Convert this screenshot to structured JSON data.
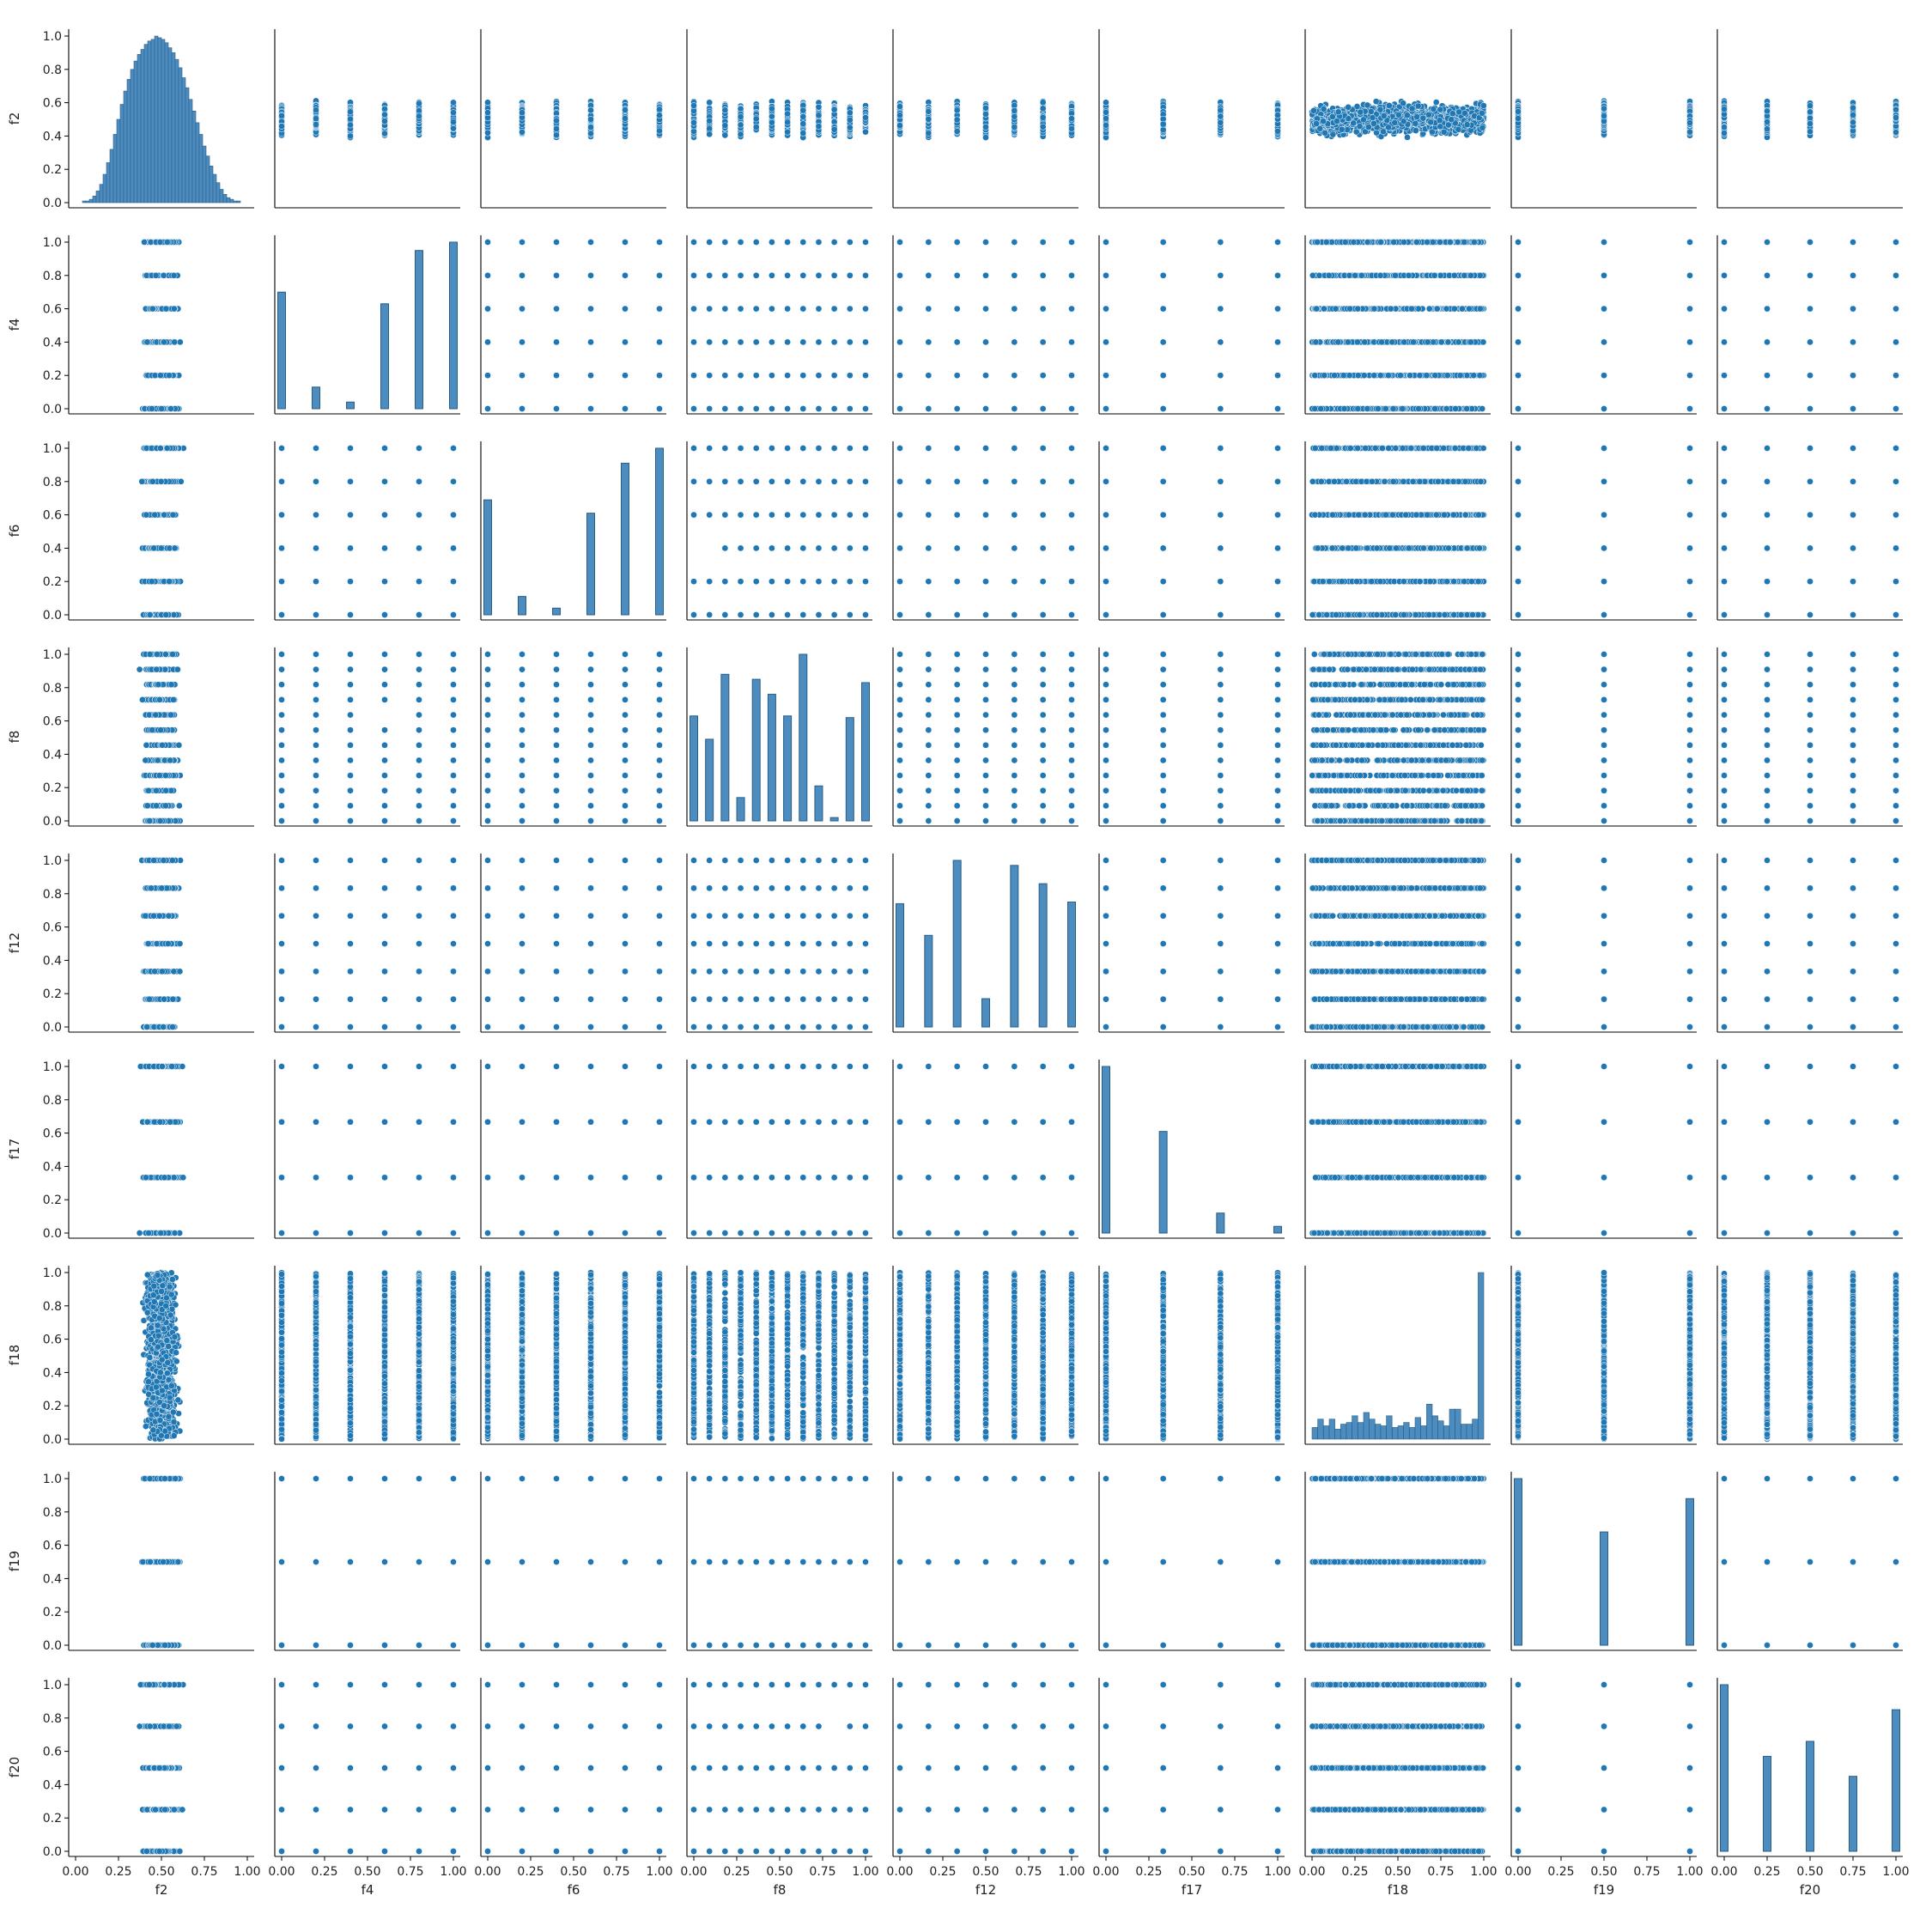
{
  "chart_data": {
    "type": "scatter",
    "kind": "pairplot",
    "variables": [
      "f2",
      "f4",
      "f6",
      "f8",
      "f12",
      "f17",
      "f18",
      "f19",
      "f20"
    ],
    "diagonal_type": "histogram",
    "off_diagonal_type": "scatter",
    "axis_range": [
      0,
      1
    ],
    "x_ticks": [
      "0.00",
      "0.25",
      "0.50",
      "0.75",
      "1.00"
    ],
    "y_ticks": [
      "0.0",
      "0.2",
      "0.4",
      "0.6",
      "0.8",
      "1.0"
    ],
    "grid": false,
    "legend": "none",
    "colors": {
      "marker": "#1f77b4",
      "marker_edge": "#ffffff",
      "hist_fill": "#4c8cbf",
      "hist_edge": "#2a5d85"
    },
    "feature_values": {
      "f4": [
        0,
        0.2,
        0.4,
        0.6,
        0.8,
        1.0
      ],
      "f6": [
        0,
        0.2,
        0.4,
        0.6,
        0.8,
        1.0
      ],
      "f8": [
        0,
        0.0909,
        0.1818,
        0.2727,
        0.3636,
        0.4545,
        0.5455,
        0.6364,
        0.7273,
        0.8182,
        0.9091,
        1.0
      ],
      "f12": [
        0,
        0.1667,
        0.3333,
        0.5,
        0.6667,
        0.8333,
        1.0
      ],
      "f17": [
        0,
        0.3333,
        0.6667,
        1.0
      ],
      "f19": [
        0,
        0.5,
        1.0
      ],
      "f20": [
        0,
        0.25,
        0.5,
        0.75,
        1.0
      ]
    },
    "histograms": {
      "f4": {
        "x": [
          0,
          0.2,
          0.4,
          0.6,
          0.8,
          1.0
        ],
        "rel_freq": [
          0.7,
          0.13,
          0.04,
          0.63,
          0.95,
          1.0
        ]
      },
      "f6": {
        "x": [
          0,
          0.2,
          0.4,
          0.6,
          0.8,
          1.0
        ],
        "rel_freq": [
          0.69,
          0.11,
          0.04,
          0.61,
          0.91,
          1.0
        ]
      },
      "f8": {
        "x": [
          0,
          0.0909,
          0.1818,
          0.2727,
          0.3636,
          0.4545,
          0.5455,
          0.6364,
          0.7273,
          0.8182,
          0.9091,
          1.0
        ],
        "rel_freq": [
          0.63,
          0.49,
          0.88,
          0.14,
          0.85,
          0.76,
          0.63,
          1.0,
          0.21,
          0.02,
          0.62,
          0.83
        ]
      },
      "f12": {
        "x": [
          0,
          0.1667,
          0.3333,
          0.5,
          0.6667,
          0.8333,
          1.0
        ],
        "rel_freq": [
          0.74,
          0.55,
          1.0,
          0.17,
          0.97,
          0.86,
          0.75
        ]
      },
      "f17": {
        "x": [
          0,
          0.3333,
          0.6667,
          1.0
        ],
        "rel_freq": [
          1.0,
          0.61,
          0.12,
          0.04
        ]
      },
      "f19": {
        "x": [
          0,
          0.5,
          1.0
        ],
        "rel_freq": [
          1.0,
          0.68,
          0.88
        ]
      },
      "f20": {
        "x": [
          0,
          0.25,
          0.5,
          0.75,
          1.0
        ],
        "rel_freq": [
          1.0,
          0.57,
          0.66,
          0.45,
          0.85
        ]
      },
      "f2": {
        "bins": [
          0.0,
          0.02,
          0.04,
          0.06,
          0.08,
          0.1,
          0.12,
          0.14,
          0.16,
          0.18,
          0.2,
          0.22,
          0.24,
          0.26,
          0.28,
          0.3,
          0.32,
          0.34,
          0.36,
          0.38,
          0.4,
          0.42,
          0.44,
          0.46,
          0.48,
          0.5,
          0.52,
          0.54,
          0.56,
          0.58,
          0.6,
          0.62,
          0.64,
          0.66,
          0.68,
          0.7,
          0.72,
          0.74,
          0.76,
          0.78,
          0.8,
          0.82,
          0.84,
          0.86,
          0.88,
          0.9,
          0.92,
          0.94,
          0.96,
          0.98
        ],
        "rel_freq": [
          0.0,
          0.0,
          0.01,
          0.01,
          0.02,
          0.04,
          0.07,
          0.11,
          0.17,
          0.24,
          0.32,
          0.41,
          0.5,
          0.59,
          0.67,
          0.74,
          0.8,
          0.85,
          0.89,
          0.92,
          0.95,
          0.97,
          0.98,
          1.0,
          0.99,
          0.98,
          0.96,
          0.93,
          0.9,
          0.86,
          0.81,
          0.75,
          0.69,
          0.62,
          0.55,
          0.48,
          0.41,
          0.34,
          0.28,
          0.22,
          0.17,
          0.12,
          0.08,
          0.05,
          0.03,
          0.02,
          0.01,
          0.01,
          0.0,
          0.0
        ]
      },
      "f18": {
        "bins": [
          0.0,
          0.033,
          0.067,
          0.1,
          0.133,
          0.167,
          0.2,
          0.233,
          0.267,
          0.3,
          0.333,
          0.367,
          0.4,
          0.433,
          0.467,
          0.5,
          0.533,
          0.567,
          0.6,
          0.633,
          0.667,
          0.7,
          0.733,
          0.767,
          0.8,
          0.833,
          0.867,
          0.9,
          0.933,
          0.967
        ],
        "rel_freq": [
          0.07,
          0.12,
          0.08,
          0.12,
          0.06,
          0.09,
          0.1,
          0.14,
          0.1,
          0.16,
          0.12,
          0.09,
          0.08,
          0.14,
          0.07,
          0.08,
          0.1,
          0.07,
          0.13,
          0.08,
          0.21,
          0.14,
          0.11,
          0.08,
          0.18,
          0.18,
          0.09,
          0.09,
          0.12,
          1.0
        ]
      }
    }
  }
}
